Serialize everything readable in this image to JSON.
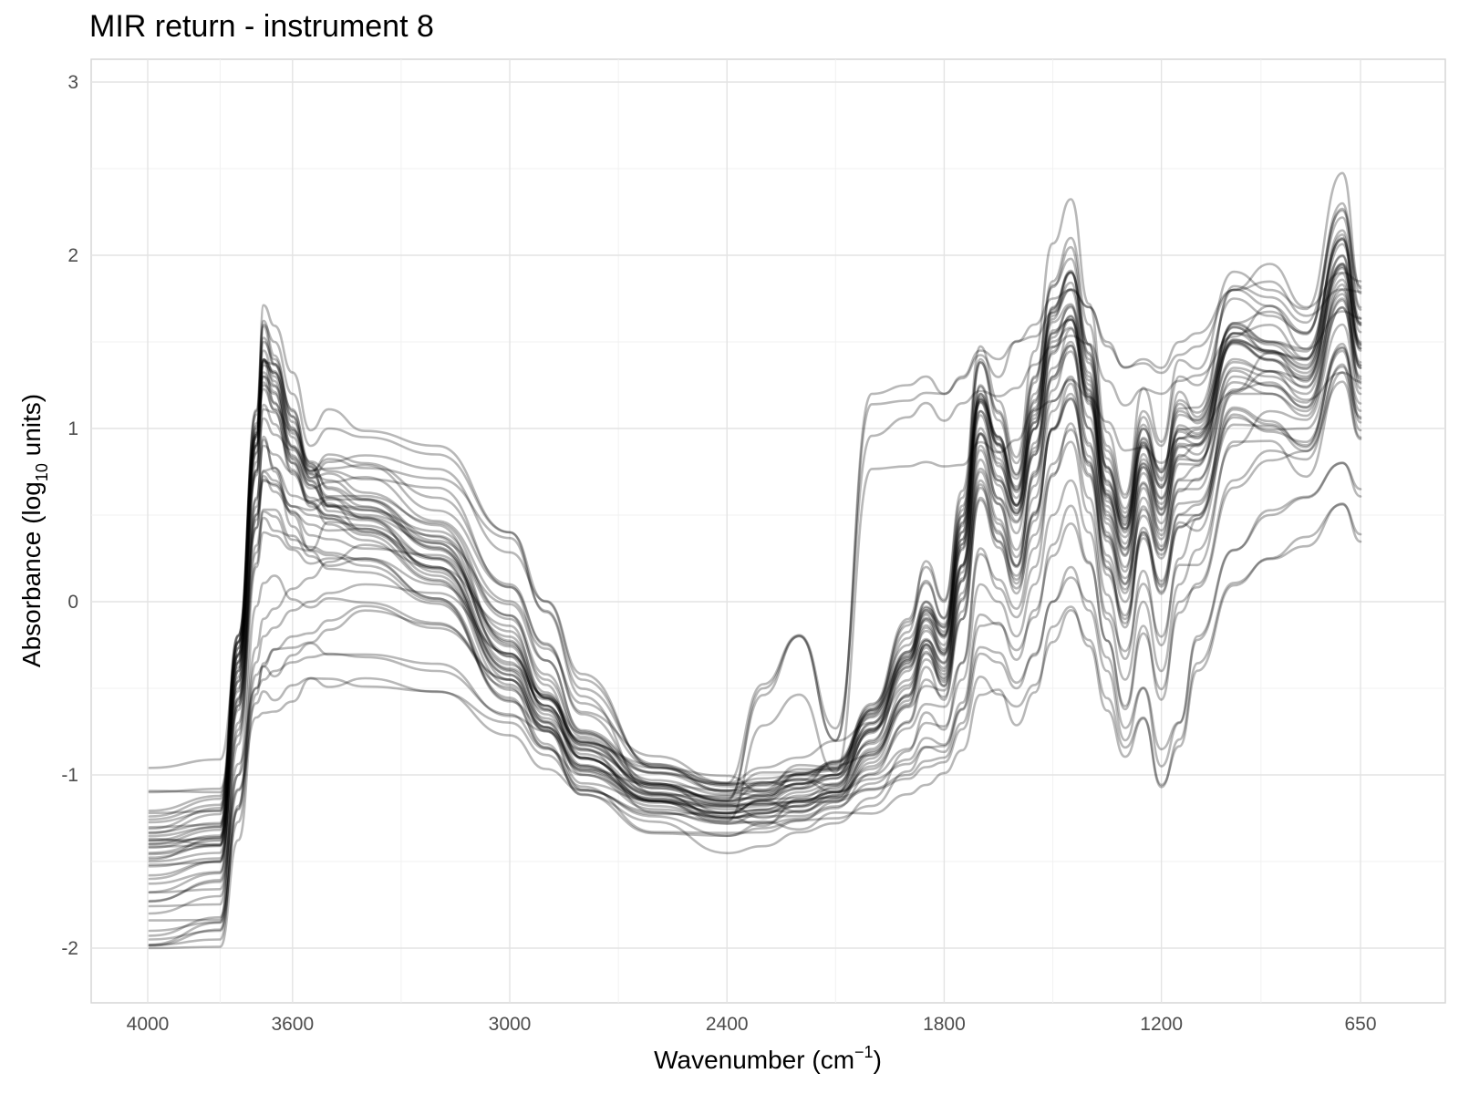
{
  "chart_data": {
    "type": "line",
    "title": "MIR return - instrument 8",
    "xlabel": {
      "main": "Wavenumber",
      "unit_base": "cm",
      "unit_exp": "−1"
    },
    "ylabel": {
      "main": "Absorbance",
      "unit_base": "log",
      "unit_sub": "10",
      "unit_tail": "units"
    },
    "x_reversed": true,
    "xlim": [
      4000,
      650
    ],
    "ylim": [
      -2,
      3
    ],
    "x_ticks": [
      4000,
      3600,
      3000,
      2400,
      1800,
      1200,
      650
    ],
    "x_tick_labels": [
      "4000",
      "3600",
      "3000",
      "2400",
      "1800",
      "1200",
      "650"
    ],
    "y_ticks": [
      3,
      2,
      1,
      0,
      -1,
      -2
    ],
    "y_tick_labels": [
      "3",
      "2",
      "1",
      "0",
      "-1",
      "-2"
    ],
    "grid": true,
    "line_color": "#000000",
    "line_opacity": 0.28,
    "series_count": 44,
    "series": [
      {
        "x": [
          3995,
          3800,
          3750,
          3700,
          3680,
          3650,
          3600,
          3550,
          3500,
          3400,
          3200,
          3000,
          2900,
          2800,
          2600,
          2400,
          2300,
          2200,
          2100,
          2000,
          1900,
          1850,
          1800,
          1750,
          1700,
          1650,
          1600,
          1550,
          1500,
          1450,
          1400,
          1350,
          1300,
          1250,
          1200,
          1150,
          1100,
          1000,
          900,
          800,
          700,
          650
        ],
        "y": [
          -1.38,
          -1.3,
          -0.2,
          1.1,
          1.45,
          1.3,
          0.95,
          0.7,
          0.6,
          0.48,
          0.25,
          -0.35,
          -0.65,
          -0.9,
          -1.12,
          -1.2,
          -1.18,
          -1.1,
          -1.05,
          -0.75,
          -0.35,
          -0.1,
          -0.25,
          0.4,
          1.2,
          0.9,
          0.6,
          1.1,
          1.65,
          1.8,
          1.3,
          0.7,
          0.4,
          0.9,
          0.6,
          1.0,
          0.95,
          1.55,
          1.45,
          1.35,
          2.0,
          1.5
        ]
      },
      {
        "x": [
          3995,
          3800,
          3750,
          3700,
          3680,
          3650,
          3600,
          3550,
          3500,
          3400,
          3200,
          3000,
          2900,
          2800,
          2600,
          2400,
          2300,
          2200,
          2100,
          2000,
          1900,
          1850,
          1800,
          1750,
          1700,
          1650,
          1600,
          1550,
          1500,
          1450,
          1400,
          1350,
          1300,
          1250,
          1200,
          1150,
          1100,
          1000,
          900,
          800,
          700,
          650
        ],
        "y": [
          -1.45,
          -1.38,
          -0.4,
          0.9,
          1.3,
          1.15,
          0.8,
          0.55,
          0.5,
          0.4,
          0.2,
          -0.4,
          -0.7,
          -0.95,
          -1.15,
          -1.22,
          -1.2,
          -1.12,
          -1.08,
          -0.8,
          -0.4,
          -0.15,
          -0.3,
          0.3,
          1.1,
          0.8,
          0.5,
          1.0,
          1.55,
          1.7,
          1.2,
          0.6,
          0.3,
          0.8,
          0.5,
          0.9,
          0.85,
          1.5,
          1.4,
          1.3,
          1.95,
          1.45
        ]
      },
      {
        "x": [
          3995,
          3800,
          3750,
          3700,
          3680,
          3650,
          3600,
          3550,
          3500,
          3400,
          3200,
          3000,
          2900,
          2800,
          2600,
          2400,
          2300,
          2200,
          2100,
          2000,
          1900,
          1850,
          1800,
          1750,
          1700,
          1650,
          1600,
          1550,
          1500,
          1450,
          1400,
          1350,
          1300,
          1250,
          1200,
          1150,
          1100,
          1000,
          900,
          800,
          700,
          650
        ],
        "y": [
          -1.42,
          -1.35,
          -0.3,
          1.0,
          1.5,
          1.4,
          1.1,
          0.8,
          0.65,
          0.55,
          0.3,
          -0.3,
          -0.6,
          -0.88,
          -1.1,
          -1.18,
          -1.15,
          -1.08,
          -1.02,
          -0.7,
          -0.3,
          -0.05,
          -0.2,
          0.45,
          1.25,
          0.95,
          0.65,
          1.15,
          1.7,
          1.9,
          1.4,
          0.75,
          0.45,
          1.0,
          0.7,
          1.1,
          1.05,
          1.6,
          1.5,
          1.4,
          2.1,
          1.6
        ]
      },
      {
        "x": [
          3995,
          3800,
          3750,
          3700,
          3680,
          3650,
          3600,
          3550,
          3500,
          3400,
          3200,
          3000,
          2900,
          2800,
          2600,
          2400,
          2300,
          2200,
          2100,
          2000,
          1900,
          1850,
          1800,
          1750,
          1700,
          1650,
          1600,
          1550,
          1500,
          1450,
          1400,
          1350,
          1300,
          1250,
          1200,
          1150,
          1100,
          1000,
          900,
          800,
          700,
          650
        ],
        "y": [
          -1.6,
          -1.5,
          -0.6,
          0.5,
          0.75,
          0.7,
          0.55,
          0.5,
          0.48,
          0.42,
          0.2,
          -0.45,
          -0.75,
          -0.98,
          -1.18,
          -1.25,
          -1.22,
          -1.15,
          -1.1,
          -0.85,
          -0.5,
          -0.25,
          -0.4,
          0.2,
          0.9,
          0.6,
          0.3,
          0.75,
          1.3,
          1.5,
          1.0,
          0.4,
          0.1,
          0.6,
          0.3,
          0.7,
          0.7,
          1.35,
          1.3,
          1.2,
          1.8,
          1.35
        ]
      },
      {
        "x": [
          3995,
          3800,
          3750,
          3700,
          3680,
          3650,
          3600,
          3550,
          3500,
          3400,
          3200,
          3000,
          2900,
          2800,
          2600,
          2400,
          2300,
          2200,
          2100,
          2000,
          1900,
          1850,
          1800,
          1750,
          1700,
          1650,
          1600,
          1550,
          1500,
          1450,
          1400,
          1350,
          1300,
          1250,
          1200,
          1150,
          1100,
          1000,
          900,
          800,
          700,
          650
        ],
        "y": [
          -1.9,
          -1.85,
          -1.0,
          0.2,
          0.4,
          0.38,
          0.3,
          0.22,
          0.25,
          0.25,
          0.1,
          -0.3,
          -0.6,
          -0.9,
          -1.15,
          -1.25,
          -1.22,
          -1.18,
          -1.12,
          -0.95,
          -0.7,
          -0.45,
          -0.55,
          -0.1,
          0.6,
          0.35,
          0.15,
          0.5,
          1.0,
          1.2,
          0.8,
          0.2,
          -0.1,
          0.4,
          0.1,
          0.5,
          0.5,
          1.2,
          1.2,
          1.1,
          1.7,
          1.3
        ]
      },
      {
        "x": [
          3995,
          3800,
          3750,
          3700,
          3680,
          3650,
          3600,
          3550,
          3500,
          3400,
          3200,
          3000,
          2900,
          2800,
          2600,
          2400,
          2300,
          2200,
          2100,
          2000,
          1900,
          1850,
          1800,
          1750,
          1700,
          1650,
          1600,
          1550,
          1500,
          1450,
          1400,
          1350,
          1300,
          1250,
          1200,
          1150,
          1100,
          1000,
          900,
          800,
          700,
          650
        ],
        "y": [
          -1.1,
          -1.08,
          -0.5,
          0.6,
          0.9,
          0.85,
          0.75,
          0.6,
          0.55,
          0.5,
          0.38,
          -0.1,
          -0.45,
          -0.78,
          -1.05,
          -1.15,
          -1.12,
          -1.05,
          -1.0,
          -0.82,
          -0.55,
          -0.3,
          -0.45,
          0.05,
          0.75,
          0.45,
          0.2,
          0.6,
          1.1,
          1.3,
          0.9,
          0.35,
          0.05,
          0.55,
          0.25,
          0.65,
          0.65,
          1.3,
          1.25,
          1.15,
          1.75,
          1.35
        ]
      },
      {
        "x": [
          3995,
          3800,
          3750,
          3700,
          3680,
          3650,
          3600,
          3550,
          3500,
          3400,
          3200,
          3000,
          2900,
          2800,
          2600,
          2400,
          2300,
          2200,
          2100,
          2000,
          1900,
          1850,
          1800,
          1750,
          1700,
          1650,
          1600,
          1550,
          1500,
          1450,
          1400,
          1350,
          1300,
          1250,
          1200,
          1150,
          1100,
          1000,
          900,
          800,
          700,
          650
        ],
        "y": [
          -1.95,
          -1.9,
          -1.2,
          -0.35,
          -0.2,
          -0.15,
          -0.05,
          0.0,
          0.05,
          0.1,
          0.05,
          -0.3,
          -0.6,
          -0.9,
          -1.15,
          -1.22,
          -1.2,
          -1.15,
          -1.1,
          -1.0,
          -0.85,
          -0.7,
          -0.72,
          -0.45,
          0.1,
          0.0,
          -0.2,
          0.1,
          0.5,
          0.7,
          0.4,
          -0.1,
          -0.45,
          0.0,
          -0.4,
          0.1,
          0.3,
          0.9,
          1.1,
          1.05,
          1.6,
          1.2
        ]
      },
      {
        "x": [
          3995,
          3800,
          3750,
          3700,
          3680,
          3650,
          3600,
          3550,
          3500,
          3400,
          3200,
          3000,
          2900,
          2800,
          2600,
          2400,
          2300,
          2200,
          2100,
          2000,
          1900,
          1850,
          1800,
          1750,
          1700,
          1650,
          1600,
          1550,
          1500,
          1450,
          1400,
          1350,
          1300,
          1250,
          1200,
          1150,
          1100,
          1000,
          900,
          800,
          700,
          650
        ],
        "y": [
          -1.8,
          -1.7,
          -1.0,
          -0.5,
          -0.45,
          -0.4,
          -0.35,
          -0.32,
          -0.3,
          -0.32,
          -0.4,
          -0.65,
          -0.85,
          -1.0,
          -1.15,
          -1.18,
          -1.17,
          -1.15,
          -1.13,
          -1.08,
          -1.0,
          -0.92,
          -0.9,
          -0.7,
          -0.3,
          -0.35,
          -0.5,
          -0.3,
          0.0,
          0.2,
          -0.05,
          -0.4,
          -0.8,
          -0.5,
          -0.95,
          -0.7,
          -0.2,
          0.3,
          0.5,
          0.6,
          0.8,
          0.65
        ]
      },
      {
        "x": [
          3995,
          3800,
          3750,
          3700,
          3680,
          3650,
          3600,
          3550,
          3500,
          3400,
          3200,
          3000,
          2900,
          2800,
          2600,
          2400,
          2300,
          2200,
          2100,
          2000,
          1900,
          1850,
          1800,
          1750,
          1700,
          1650,
          1600,
          1550,
          1500,
          1450,
          1400,
          1350,
          1300,
          1250,
          1200,
          1150,
          1100,
          1000,
          900,
          800,
          700,
          650
        ],
        "y": [
          -1.5,
          -1.45,
          -0.4,
          0.9,
          1.6,
          1.5,
          1.2,
          0.9,
          1.0,
          0.95,
          0.85,
          0.4,
          0.0,
          -0.45,
          -0.95,
          -1.1,
          -1.12,
          -1.05,
          -1.0,
          -0.6,
          -0.1,
          0.2,
          0.0,
          0.6,
          1.4,
          1.1,
          0.8,
          1.3,
          1.85,
          2.1,
          1.6,
          0.9,
          0.6,
          1.1,
          0.9,
          1.3,
          1.25,
          1.75,
          1.65,
          1.55,
          2.3,
          1.7
        ]
      },
      {
        "x": [
          3995,
          3800,
          3750,
          3700,
          3680,
          3650,
          3600,
          3550,
          3500,
          3400,
          3200,
          3000,
          2900,
          2800,
          2600,
          2400,
          2300,
          2200,
          2100,
          2000,
          1900,
          1850,
          1800,
          1750,
          1700,
          1650,
          1600,
          1550,
          1500,
          1450,
          1400,
          1350,
          1300,
          1250,
          1200,
          1150,
          1100,
          1000,
          900,
          800,
          700,
          650
        ],
        "y": [
          -1.4,
          -1.36,
          -0.35,
          0.95,
          1.4,
          1.25,
          0.9,
          0.75,
          0.85,
          0.8,
          0.6,
          0.1,
          -0.25,
          -0.65,
          -1.05,
          -1.15,
          -0.5,
          -0.2,
          -0.8,
          1.2,
          1.25,
          1.3,
          1.2,
          1.3,
          1.45,
          1.4,
          1.5,
          1.6,
          1.75,
          1.8,
          1.7,
          1.5,
          1.35,
          1.4,
          1.35,
          1.5,
          1.55,
          1.8,
          1.95,
          1.7,
          1.9,
          1.85
        ]
      }
    ]
  }
}
